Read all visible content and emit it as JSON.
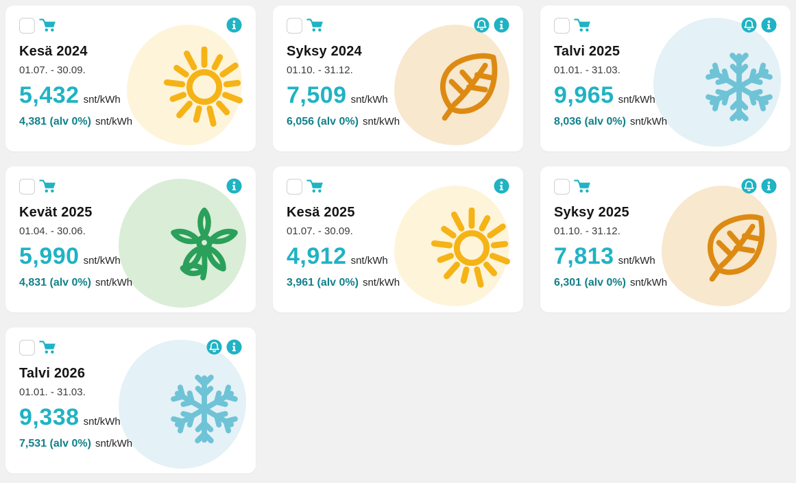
{
  "page": {
    "background_color": "#f1f1f1",
    "card_background": "#ffffff"
  },
  "colors": {
    "accent_teal": "#1fb3c4",
    "dark_teal": "#12808a",
    "sun": "#f5b316",
    "sun_bg": "#fdf4da",
    "leaf": "#dd8a13",
    "leaf_bg": "#f7e8ce",
    "snowflake": "#6fc3d6",
    "snowflake_bg": "#e4f1f6",
    "flower": "#2aa05a",
    "flower_bg": "#d9edd7"
  },
  "unit_label": "snt/kWh",
  "cards": [
    {
      "title": "Kesä 2024",
      "dates": "01.07. - 30.09.",
      "price": "5,432",
      "price_alv0": "4,381 (alv 0%)",
      "icon": "sun",
      "bell": false,
      "info": true,
      "checked": false
    },
    {
      "title": "Syksy 2024",
      "dates": "01.10. - 31.12.",
      "price": "7,509",
      "price_alv0": "6,056 (alv 0%)",
      "icon": "leaf",
      "bell": true,
      "info": true,
      "checked": false
    },
    {
      "title": "Talvi 2025",
      "dates": "01.01. - 31.03.",
      "price": "9,965",
      "price_alv0": "8,036 (alv 0%)",
      "icon": "snowflake",
      "bell": true,
      "info": true,
      "checked": false
    },
    {
      "title": "Kevät 2025",
      "dates": "01.04. - 30.06.",
      "price": "5,990",
      "price_alv0": "4,831 (alv 0%)",
      "icon": "flower",
      "bell": false,
      "info": true,
      "checked": false
    },
    {
      "title": "Kesä 2025",
      "dates": "01.07. - 30.09.",
      "price": "4,912",
      "price_alv0": "3,961 (alv 0%)",
      "icon": "sun",
      "bell": false,
      "info": true,
      "checked": false
    },
    {
      "title": "Syksy 2025",
      "dates": "01.10. - 31.12.",
      "price": "7,813",
      "price_alv0": "6,301 (alv 0%)",
      "icon": "leaf",
      "bell": true,
      "info": true,
      "checked": false
    },
    {
      "title": "Talvi 2026",
      "dates": "01.01. - 31.03.",
      "price": "9,338",
      "price_alv0": "7,531 (alv 0%)",
      "icon": "snowflake",
      "bell": true,
      "info": true,
      "checked": false
    }
  ]
}
